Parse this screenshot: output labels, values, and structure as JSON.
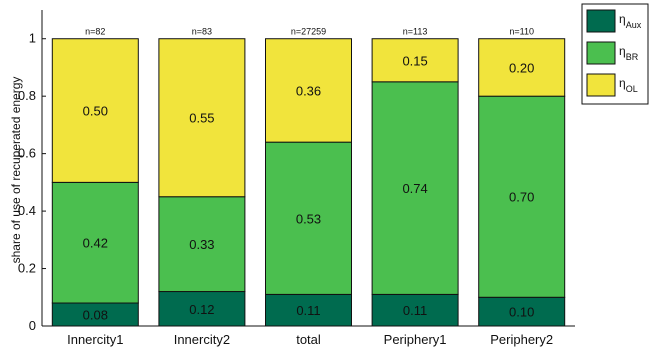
{
  "chart_data": {
    "type": "bar",
    "stacked": true,
    "categories": [
      "Innercity1",
      "Innercity2",
      "total",
      "Periphery1",
      "Periphery2"
    ],
    "sample_sizes": [
      "n=82",
      "n=83",
      "n=27259",
      "n=113",
      "n=110"
    ],
    "series": [
      {
        "name": "η_Aux",
        "symbol": "η",
        "subscript": "Aux",
        "color": "#006b4f",
        "values": [
          0.08,
          0.12,
          0.11,
          0.11,
          0.1
        ],
        "labels": [
          "0.08",
          "0.12",
          "0.11",
          "0.11",
          "0.10"
        ]
      },
      {
        "name": "η_BR",
        "symbol": "η",
        "subscript": "BR",
        "color": "#4bbf4f",
        "values": [
          0.42,
          0.33,
          0.53,
          0.74,
          0.7
        ],
        "labels": [
          "0.42",
          "0.33",
          "0.53",
          "0.74",
          "0.70"
        ]
      },
      {
        "name": "η_OL",
        "symbol": "η",
        "subscript": "OL",
        "color": "#f1e43c",
        "values": [
          0.5,
          0.55,
          0.36,
          0.15,
          0.2
        ],
        "labels": [
          "0.50",
          "0.55",
          "0.36",
          "0.15",
          "0.20"
        ]
      }
    ],
    "title": "",
    "xlabel": "",
    "ylabel": "share of use of recuperated energy",
    "ylim": [
      0,
      1.1
    ],
    "yticks": [
      0,
      0.2,
      0.4,
      0.6,
      0.8,
      1
    ],
    "ytick_labels": [
      "0",
      "0.2",
      "0.4",
      "0.6",
      "0.8",
      "1"
    ],
    "legend_placement": "outside-top-right",
    "grid": false
  }
}
